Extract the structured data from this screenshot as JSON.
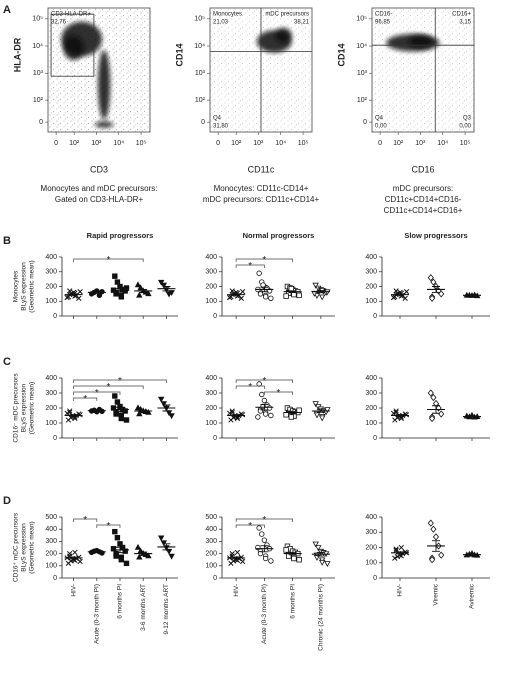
{
  "chart_data": [
    {
      "type": "flow",
      "panel": "A",
      "xlabel": "CD3",
      "ylabel": "HLA-DR",
      "xscale": "biexponential",
      "yscale": "biexponential",
      "xlim": [
        -30,
        250000
      ],
      "ylim": [
        -30,
        250000
      ],
      "xticks": [
        0,
        {
          "value": 100,
          "label": "10²"
        },
        {
          "value": 1000,
          "label": "10³"
        },
        {
          "value": 10000,
          "label": "10⁴"
        },
        {
          "value": 100000,
          "label": "10⁵"
        }
      ],
      "yticks": [
        0,
        {
          "value": 100,
          "label": "10²"
        },
        {
          "value": 1000,
          "label": "10³"
        },
        {
          "value": 10000,
          "label": "10⁴"
        },
        {
          "value": 100000,
          "label": "10⁵"
        }
      ],
      "gates": [
        {
          "name": "CD3-HLA-DR+",
          "value": "32,76",
          "corner": "top-left"
        }
      ],
      "caption": [
        "Monocytes and mDC precursors:",
        "Gated on CD3-HLA-DR+"
      ]
    },
    {
      "type": "flow",
      "xlabel": "CD11c",
      "ylabel": "CD14",
      "xscale": "biexponential",
      "yscale": "biexponential",
      "xlim": [
        -30,
        250000
      ],
      "ylim": [
        -30,
        250000
      ],
      "xticks": [
        0,
        {
          "value": 100,
          "label": "10²"
        },
        {
          "value": 1000,
          "label": "10³"
        },
        {
          "value": 10000,
          "label": "10⁴"
        },
        {
          "value": 100000,
          "label": "10⁵"
        }
      ],
      "yticks": [
        0,
        {
          "value": 100,
          "label": "10²"
        },
        {
          "value": 1000,
          "label": "10³"
        },
        {
          "value": 10000,
          "label": "10⁴"
        },
        {
          "value": 100000,
          "label": "10⁵"
        }
      ],
      "gates": [
        {
          "name": "Monocytes",
          "value": "21,03",
          "corner": "top-left"
        },
        {
          "name": "mDC precursors",
          "value": "38,21",
          "corner": "top-right"
        },
        {
          "name": "Q4",
          "value": "31,80",
          "corner": "bottom-left"
        }
      ],
      "caption": [
        "Monocytes: CD11c-CD14+",
        "mDC precursors: CD11c+CD14+"
      ]
    },
    {
      "type": "flow",
      "xlabel": "CD16",
      "ylabel": "CD14",
      "xscale": "biexponential",
      "yscale": "biexponential",
      "xlim": [
        -30,
        250000
      ],
      "ylim": [
        -30,
        250000
      ],
      "xticks": [
        0,
        {
          "value": 100,
          "label": "10²"
        },
        {
          "value": 1000,
          "label": "10³"
        },
        {
          "value": 10000,
          "label": "10⁴"
        },
        {
          "value": 100000,
          "label": "10⁵"
        }
      ],
      "yticks": [
        0,
        {
          "value": 100,
          "label": "10²"
        },
        {
          "value": 1000,
          "label": "10³"
        },
        {
          "value": 10000,
          "label": "10⁴"
        },
        {
          "value": 100000,
          "label": "10⁵"
        }
      ],
      "gates": [
        {
          "name": "CD16-",
          "value": "96,85",
          "corner": "top-left"
        },
        {
          "name": "CD16+",
          "value": "3,15",
          "corner": "top-right"
        },
        {
          "name": "Q4",
          "value": "0,00",
          "corner": "bottom-left"
        },
        {
          "name": "Q3",
          "value": "0,00",
          "corner": "bottom-right"
        }
      ],
      "caption": [
        "mDC precursors:",
        "CD11c+CD14+CD16-",
        "CD11c+CD14+CD16+"
      ]
    },
    {
      "type": "dot",
      "panel": "B",
      "title": "Rapid progressors",
      "ylabel": [
        "Monocytes",
        "BLyS expression",
        "(Geometric mean)"
      ],
      "ylim": [
        0,
        400
      ],
      "yticks": [
        0,
        100,
        200,
        300,
        400
      ],
      "categories": [
        null,
        null,
        null,
        null,
        null
      ],
      "markers": [
        "x",
        "circle-filled",
        "square-filled",
        "triangle-up-filled",
        "triangle-down-filled"
      ],
      "values": [
        [
          130,
          150,
          160,
          140,
          120,
          170,
          145,
          135,
          155,
          165,
          125
        ],
        [
          150,
          160,
          170,
          140,
          165
        ],
        [
          270,
          230,
          200,
          180,
          170,
          160,
          150,
          140,
          130,
          190,
          175
        ],
        [
          210,
          190,
          170,
          160,
          150,
          140
        ],
        [
          230,
          210,
          180,
          150,
          160
        ]
      ],
      "means": [
        145,
        160,
        175,
        170,
        185
      ],
      "sem": [
        5,
        6,
        12,
        10,
        15
      ],
      "brackets": [
        {
          "between": [
            0,
            3
          ],
          "label": "*"
        }
      ]
    },
    {
      "type": "dot",
      "title": "Normal progressors",
      "ylim": [
        0,
        400
      ],
      "yticks": [
        0,
        100,
        200,
        300,
        400
      ],
      "categories": [
        null,
        null,
        null,
        null
      ],
      "markers": [
        "x",
        "circle-open",
        "square-open",
        "triangle-down-open"
      ],
      "values": [
        [
          130,
          150,
          160,
          140,
          120,
          170,
          145,
          135,
          155,
          165,
          125
        ],
        [
          290,
          230,
          200,
          190,
          170,
          160,
          150,
          140,
          130,
          120,
          180,
          210
        ],
        [
          200,
          190,
          180,
          170,
          165,
          160,
          155,
          150,
          145,
          140,
          135,
          175,
          185
        ],
        [
          210,
          190,
          180,
          170,
          160,
          150,
          140,
          130,
          175,
          165,
          155
        ]
      ],
      "means": [
        145,
        180,
        165,
        165
      ],
      "sem": [
        5,
        15,
        6,
        7
      ],
      "brackets": [
        {
          "between": [
            0,
            2
          ],
          "label": "*"
        },
        {
          "between": [
            0,
            1
          ],
          "label": "*"
        }
      ]
    },
    {
      "type": "dot",
      "title": "Slow progressors",
      "ylim": [
        0,
        400
      ],
      "yticks": [
        0,
        100,
        200,
        300,
        400
      ],
      "categories": [
        null,
        null,
        null
      ],
      "markers": [
        "x",
        "diamond-open",
        "triangle-up-filled"
      ],
      "values": [
        [
          130,
          150,
          160,
          140,
          120,
          170,
          145,
          135,
          155,
          165,
          125
        ],
        [
          260,
          230,
          200,
          170,
          150,
          130,
          120
        ],
        [
          140,
          140,
          138,
          142,
          136
        ]
      ],
      "means": [
        145,
        180,
        140
      ],
      "sem": [
        5,
        20,
        2
      ],
      "brackets": []
    },
    {
      "type": "dot",
      "panel": "C",
      "ylabel": [
        "CD16⁻ mDC precursors",
        "BLyS expression",
        "(Geometric mean)"
      ],
      "ylim": [
        0,
        400
      ],
      "yticks": [
        0,
        100,
        200,
        300,
        400
      ],
      "categories": [
        null,
        null,
        null,
        null,
        null
      ],
      "markers": [
        "x",
        "circle-filled",
        "square-filled",
        "triangle-up-filled",
        "triangle-down-filled"
      ],
      "values": [
        [
          120,
          135,
          145,
          150,
          160,
          170,
          180,
          140,
          130,
          155,
          165
        ],
        [
          180,
          185,
          175,
          190,
          178
        ],
        [
          280,
          240,
          210,
          190,
          180,
          170,
          160,
          150,
          130,
          120,
          200
        ],
        [
          200,
          190,
          180,
          175,
          170,
          160
        ],
        [
          260,
          230,
          200,
          170,
          150
        ]
      ],
      "means": [
        150,
        182,
        190,
        180,
        200
      ],
      "sem": [
        6,
        3,
        15,
        6,
        20
      ],
      "brackets": [
        {
          "between": [
            0,
            4
          ],
          "label": "*"
        },
        {
          "between": [
            0,
            3
          ],
          "label": "*"
        },
        {
          "between": [
            0,
            2
          ],
          "label": "*"
        },
        {
          "between": [
            0,
            1
          ],
          "label": "*"
        }
      ]
    },
    {
      "type": "dot",
      "ylim": [
        0,
        400
      ],
      "yticks": [
        0,
        100,
        200,
        300,
        400
      ],
      "categories": [
        null,
        null,
        null,
        null
      ],
      "markers": [
        "x",
        "circle-open",
        "square-open",
        "triangle-down-open"
      ],
      "values": [
        [
          120,
          135,
          145,
          150,
          160,
          170,
          180,
          140,
          130,
          155,
          165
        ],
        [
          360,
          290,
          250,
          220,
          200,
          190,
          180,
          170,
          160,
          150,
          140,
          210
        ],
        [
          200,
          190,
          180,
          175,
          170,
          165,
          160,
          150,
          145,
          185,
          155,
          140
        ],
        [
          230,
          210,
          195,
          185,
          175,
          165,
          155,
          145,
          135,
          190
        ]
      ],
      "means": [
        150,
        205,
        170,
        180
      ],
      "sem": [
        6,
        18,
        6,
        9
      ],
      "brackets": [
        {
          "between": [
            0,
            2
          ],
          "label": "*"
        },
        {
          "between": [
            0,
            1
          ],
          "label": "*"
        },
        {
          "between": [
            1,
            2
          ],
          "label": "*"
        }
      ]
    },
    {
      "type": "dot",
      "ylim": [
        0,
        400
      ],
      "yticks": [
        0,
        100,
        200,
        300,
        400
      ],
      "categories": [
        null,
        null,
        null
      ],
      "markers": [
        "x",
        "diamond-open",
        "triangle-up-filled"
      ],
      "values": [
        [
          120,
          135,
          145,
          150,
          160,
          170,
          180,
          140,
          130,
          155,
          165
        ],
        [
          300,
          270,
          230,
          200,
          160,
          140,
          130
        ],
        [
          145,
          140,
          150,
          138,
          142
        ]
      ],
      "means": [
        150,
        190,
        143
      ],
      "sem": [
        6,
        25,
        2
      ],
      "brackets": []
    },
    {
      "type": "dot",
      "panel": "D",
      "ylabel": [
        "CD16⁺ mDC precursors",
        "BLyS expression",
        "(Geometric mean)"
      ],
      "ylim": [
        0,
        500
      ],
      "yticks": [
        0,
        100,
        200,
        300,
        400,
        500
      ],
      "categories": [
        "HIV-",
        "Acute (0-3 month PI)",
        "6 months PI",
        "3-6 months ART",
        "9-12 months ART"
      ],
      "markers": [
        "x",
        "circle-filled",
        "square-filled",
        "triangle-up-filled",
        "triangle-down-filled"
      ],
      "values": [
        [
          120,
          140,
          150,
          160,
          170,
          180,
          200,
          210,
          145,
          135,
          165
        ],
        [
          210,
          220,
          225,
          215,
          205
        ],
        [
          380,
          330,
          280,
          250,
          220,
          200,
          180,
          170,
          150,
          120,
          240
        ],
        [
          250,
          220,
          200,
          190,
          180,
          170
        ],
        [
          330,
          290,
          250,
          220,
          180
        ]
      ],
      "means": [
        165,
        215,
        230,
        200,
        255
      ],
      "sem": [
        8,
        4,
        22,
        12,
        25
      ],
      "brackets": [
        {
          "between": [
            0,
            1
          ],
          "label": "*"
        },
        {
          "between": [
            1,
            2
          ],
          "label": "*"
        }
      ]
    },
    {
      "type": "dot",
      "ylim": [
        0,
        500
      ],
      "yticks": [
        0,
        100,
        200,
        300,
        400,
        500
      ],
      "categories": [
        "HIV-",
        "Acute (0-3 month PI)",
        "6 months PI",
        "Chronic (24 months PI)"
      ],
      "markers": [
        "x",
        "circle-open",
        "square-open",
        "triangle-down-open"
      ],
      "values": [
        [
          120,
          140,
          150,
          160,
          170,
          180,
          200,
          210,
          145,
          135,
          165
        ],
        [
          410,
          360,
          310,
          270,
          240,
          220,
          200,
          180,
          160,
          140,
          250
        ],
        [
          260,
          240,
          220,
          210,
          200,
          190,
          180,
          170,
          160,
          150,
          230
        ],
        [
          280,
          250,
          220,
          210,
          200,
          190,
          170,
          150,
          130,
          120
        ]
      ],
      "means": [
        165,
        240,
        200,
        195
      ],
      "sem": [
        8,
        25,
        10,
        15
      ],
      "brackets": [
        {
          "between": [
            0,
            2
          ],
          "label": "*"
        },
        {
          "between": [
            0,
            1
          ],
          "label": "*"
        }
      ]
    },
    {
      "type": "dot",
      "ylim": [
        0,
        400
      ],
      "yticks": [
        0,
        100,
        200,
        300,
        400
      ],
      "categories": [
        "HIV-",
        "Viremic",
        "Aviremic"
      ],
      "markers": [
        "x",
        "diamond-open",
        "triangle-up-filled"
      ],
      "values": [
        [
          130,
          140,
          150,
          160,
          170,
          180,
          190,
          200,
          145,
          165
        ],
        [
          360,
          320,
          270,
          210,
          150,
          130,
          120
        ],
        [
          150,
          155,
          160,
          150,
          148
        ]
      ],
      "means": [
        165,
        210,
        153
      ],
      "sem": [
        7,
        35,
        2
      ],
      "brackets": []
    }
  ]
}
